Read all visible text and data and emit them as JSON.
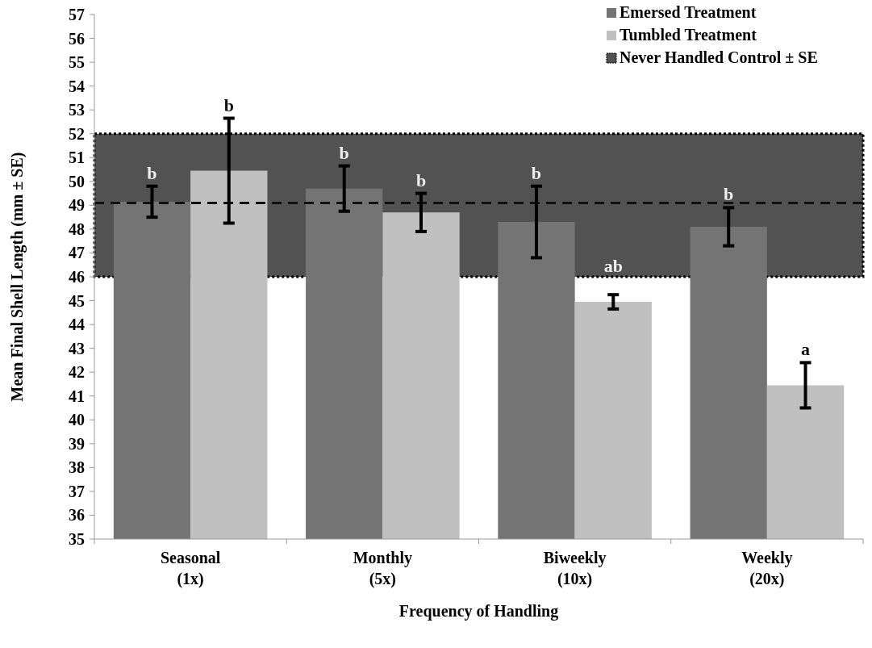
{
  "chart_data": {
    "type": "bar",
    "xlabel": "Frequency of Handling",
    "ylabel": "Mean Final Shell Length (mm ± SE)",
    "categories": [
      "Seasonal\n(1x)",
      "Monthly\n(5x)",
      "Biweekly\n(10x)",
      "Weekly\n(20x)"
    ],
    "series": [
      {
        "name": "Emersed Treatment",
        "color": "#747474",
        "values": [
          49.15,
          49.7,
          48.3,
          48.1
        ],
        "errors": [
          0.65,
          0.95,
          1.5,
          0.8
        ],
        "value_labels": [
          "b",
          "b",
          "b",
          "b"
        ]
      },
      {
        "name": "Tumbled Treatment",
        "color": "#c0c0c0",
        "values": [
          50.45,
          48.7,
          44.95,
          41.45
        ],
        "errors": [
          2.2,
          0.8,
          0.3,
          0.95
        ],
        "value_labels": [
          "b",
          "b",
          "ab",
          "a"
        ]
      }
    ],
    "bands": [
      {
        "axis": "y",
        "from": 46,
        "to": 52,
        "label": "Never Handled Control ± SE",
        "color": "#525252"
      }
    ],
    "ref_lines": [
      {
        "axis": "y",
        "value": 49.1,
        "color": "#111111",
        "line_style": "dashed"
      }
    ],
    "ylim": [
      35,
      57
    ],
    "yticks": [
      35,
      36,
      37,
      38,
      39,
      40,
      41,
      42,
      43,
      44,
      45,
      46,
      47,
      48,
      49,
      50,
      51,
      52,
      53,
      54,
      55,
      56,
      57
    ],
    "grid": false,
    "legend": "top right"
  }
}
